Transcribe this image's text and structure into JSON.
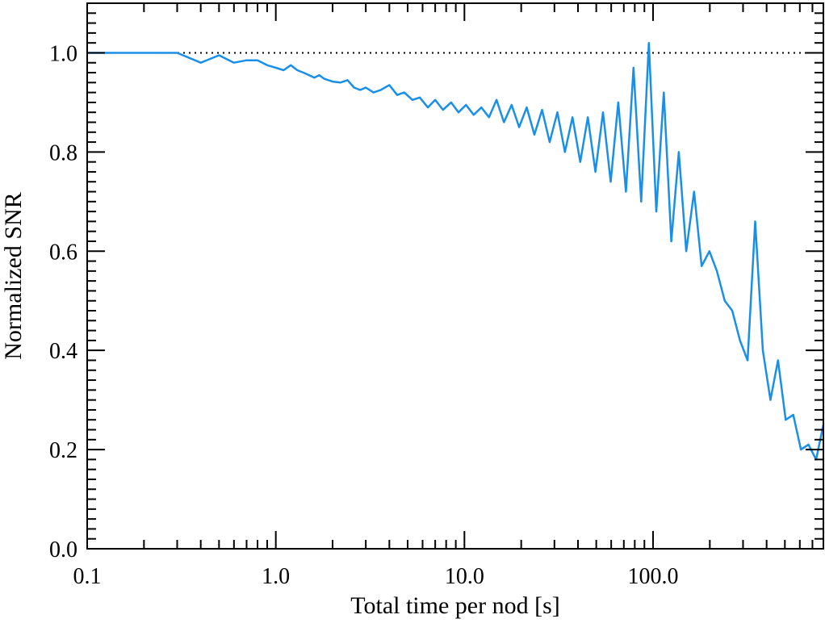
{
  "chart_data": {
    "type": "line",
    "xlabel": "Total time per nod [s]",
    "ylabel": "Normalized SNR",
    "xscale": "log",
    "xlim": [
      0.1,
      800
    ],
    "ylim": [
      0.0,
      1.1
    ],
    "x_ticks": [
      0.1,
      1.0,
      10.0,
      100.0
    ],
    "x_tick_labels": [
      "0.1",
      "1.0",
      "10.0",
      "100.0"
    ],
    "y_ticks": [
      0.0,
      0.2,
      0.4,
      0.6,
      0.8,
      1.0
    ],
    "y_tick_labels": [
      "0.0",
      "0.2",
      "0.4",
      "0.6",
      "0.8",
      "1.0"
    ],
    "reference_line": {
      "y": 1.0,
      "style": "dotted",
      "color": "#000000"
    },
    "grid": false,
    "series": [
      {
        "color": "#1a8fe8",
        "x": [
          0.1,
          0.2,
          0.3,
          0.4,
          0.5,
          0.6,
          0.7,
          0.8,
          0.9,
          1.0,
          1.1,
          1.2,
          1.3,
          1.4,
          1.5,
          1.6,
          1.7,
          1.8,
          1.9,
          2.0,
          2.2,
          2.4,
          2.6,
          2.8,
          3.0,
          3.3,
          3.6,
          4.0,
          4.4,
          4.8,
          5.3,
          5.8,
          6.4,
          7.0,
          7.7,
          8.5,
          9.3,
          10.2,
          11.2,
          12.3,
          13.5,
          14.8,
          16.2,
          17.8,
          19.5,
          21.4,
          23.5,
          25.8,
          28.3,
          31.1,
          34.1,
          37.4,
          41.1,
          45.1,
          49.5,
          54.3,
          59.6,
          65.4,
          71.8,
          78.8,
          86.5,
          95.0,
          104.0,
          114.0,
          125.0,
          137.0,
          150.0,
          165.0,
          181.0,
          199.0,
          218.0,
          240.0,
          263.0,
          289.0,
          317.0,
          348.0,
          382.0,
          419.0,
          460.0,
          505.0,
          554.0,
          608.0,
          667.0,
          732.0,
          800.0
        ],
        "y": [
          1.0,
          1.0,
          1.0,
          0.98,
          0.995,
          0.98,
          0.985,
          0.985,
          0.975,
          0.97,
          0.965,
          0.975,
          0.965,
          0.96,
          0.955,
          0.95,
          0.955,
          0.948,
          0.945,
          0.942,
          0.94,
          0.945,
          0.93,
          0.925,
          0.93,
          0.92,
          0.925,
          0.935,
          0.915,
          0.92,
          0.905,
          0.91,
          0.89,
          0.905,
          0.885,
          0.9,
          0.88,
          0.895,
          0.875,
          0.89,
          0.87,
          0.905,
          0.86,
          0.895,
          0.85,
          0.89,
          0.835,
          0.885,
          0.82,
          0.88,
          0.8,
          0.87,
          0.78,
          0.87,
          0.76,
          0.88,
          0.74,
          0.9,
          0.72,
          0.97,
          0.7,
          1.02,
          0.68,
          0.92,
          0.62,
          0.8,
          0.6,
          0.72,
          0.57,
          0.6,
          0.56,
          0.5,
          0.48,
          0.42,
          0.38,
          0.66,
          0.4,
          0.3,
          0.38,
          0.26,
          0.27,
          0.2,
          0.21,
          0.18,
          0.25
        ]
      }
    ]
  }
}
